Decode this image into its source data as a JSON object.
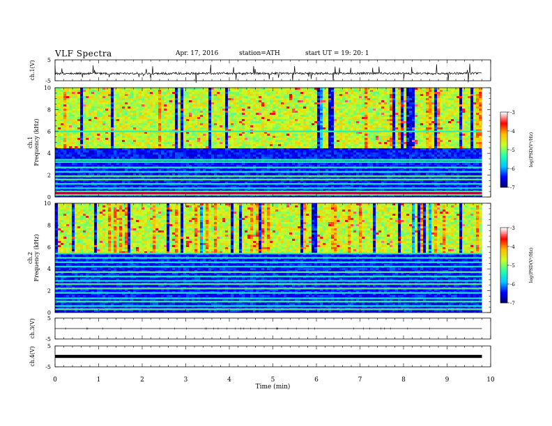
{
  "header": {
    "title": "VLF  Spectra",
    "date": "Apr. 17, 2016",
    "station": "station=ATH",
    "start": "start  UT  =    19: 20: 1"
  },
  "chart_data": [
    {
      "type": "line",
      "panel": "ch1-waveform",
      "ylabel": "ch.1(V)",
      "ylim": [
        -5,
        5
      ],
      "yticks": [
        "5",
        "-5"
      ],
      "xlim": [
        0,
        10
      ],
      "baseline": -1.5
    },
    {
      "type": "heatmap",
      "panel": "ch1-spectrogram",
      "ylabel": [
        "ch.1",
        "Frequency  (kHz)"
      ],
      "ylim": [
        0,
        10
      ],
      "yticks": [
        "0",
        "2",
        "4",
        "6",
        "8",
        "10"
      ],
      "xlim": [
        0,
        10
      ],
      "data_end_min": 9.8,
      "colorbar": {
        "label": "log(PSD(V²/Hz)",
        "range": [
          -7,
          -3
        ],
        "ticks": [
          "-3",
          "-4",
          "-5",
          "-6",
          "-7"
        ]
      },
      "noise_floor_khz": 4.5,
      "lines_khz": [
        0.2,
        0.5,
        0.8,
        1.2,
        1.6,
        1.9,
        2.3,
        2.7,
        3.2,
        3.4,
        6.0
      ]
    },
    {
      "type": "heatmap",
      "panel": "ch2-spectrogram",
      "ylabel": [
        "ch.2",
        "Frequency  (kHz)"
      ],
      "ylim": [
        0,
        10
      ],
      "yticks": [
        "0",
        "2",
        "4",
        "6",
        "8",
        "10"
      ],
      "xlim": [
        0,
        10
      ],
      "data_end_min": 9.8,
      "colorbar": {
        "label": "log(PSD(V²/Hz)",
        "range": [
          -7,
          -3
        ],
        "ticks": [
          "-3",
          "-4",
          "-5",
          "-6",
          "-7"
        ]
      },
      "noise_floor_khz": 5.5,
      "lines_khz": [
        0.3,
        0.6,
        1.0,
        1.3,
        1.8,
        2.2,
        2.6,
        2.9,
        3.3,
        3.7,
        4.2,
        4.6,
        5.0,
        5.4
      ]
    },
    {
      "type": "line",
      "panel": "ch3-waveform",
      "ylabel": "ch.3(V)",
      "ylim": [
        -5,
        5
      ],
      "yticks": [
        "5",
        "-5"
      ],
      "xlim": [
        0,
        10
      ],
      "baseline": 0
    },
    {
      "type": "line",
      "panel": "ch4-waveform",
      "ylabel": "ch.4(V)",
      "ylim": [
        -5,
        5
      ],
      "yticks": [
        "5",
        "-5"
      ],
      "xlim": [
        0,
        10
      ],
      "baseline": 0
    }
  ],
  "xaxis": {
    "label": "Time  (min)",
    "ticks": [
      "0",
      "1",
      "2",
      "3",
      "4",
      "5",
      "6",
      "7",
      "8",
      "9",
      "10"
    ]
  }
}
